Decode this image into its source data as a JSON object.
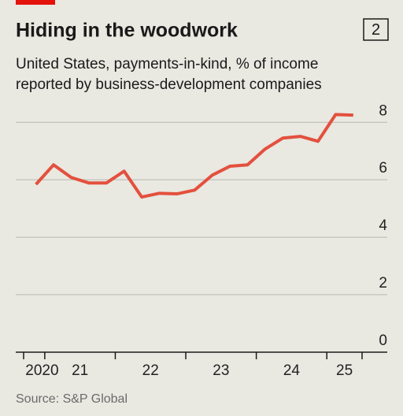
{
  "chart_data": {
    "type": "line",
    "title": "Hiding in the woodwork",
    "badge": "2",
    "subtitle": [
      "United States, payments-in-kind, % of income",
      "reported by business-development companies"
    ],
    "source": "Source: S&P Global",
    "x": [
      2020.875,
      2021.125,
      2021.375,
      2021.625,
      2021.875,
      2022.125,
      2022.375,
      2022.625,
      2022.875,
      2023.125,
      2023.375,
      2023.625,
      2023.875,
      2024.125,
      2024.375,
      2024.625,
      2024.875,
      2025.125,
      2025.375
    ],
    "series": [
      {
        "name": "Payments-in-kind",
        "color": "#e3503d",
        "values": [
          5.84,
          6.52,
          6.08,
          5.89,
          5.89,
          6.3,
          5.4,
          5.53,
          5.51,
          5.64,
          6.16,
          6.47,
          6.52,
          7.07,
          7.45,
          7.51,
          7.34,
          8.27,
          8.25
        ]
      }
    ],
    "xlim": [
      2020.7,
      2025.5
    ],
    "xticks": [
      {
        "value": 2020.7,
        "label": "2020"
      },
      {
        "value": 2021,
        "label": "21"
      },
      {
        "value": 2022,
        "label": "22"
      },
      {
        "value": 2023,
        "label": "23"
      },
      {
        "value": 2024,
        "label": "24"
      },
      {
        "value": 2025,
        "label": "25"
      }
    ],
    "ylim": [
      0,
      8.5
    ],
    "yticks": [
      0,
      2,
      4,
      6,
      8
    ],
    "grid": true
  }
}
